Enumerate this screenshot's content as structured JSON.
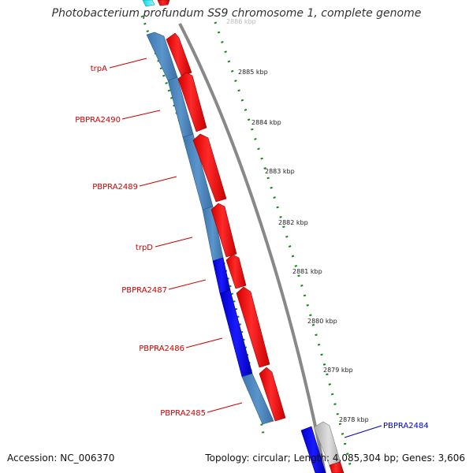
{
  "title": "Photobacterium profundum SS9 chromosome 1, complete genome",
  "footer": {
    "accession": "Accession: NC_006370",
    "summary": "Topology: circular; Length: 4,085,304 bp; Genes: 3,606"
  },
  "colors": {
    "label_red": "#cc0000",
    "label_blue": "#0000cc",
    "cds_forward": "#ff0000",
    "cds_reverse_steel": "#4f88c0",
    "cds_reverse_blue": "#0000ee",
    "backbone": "#888888",
    "scale_ticks": "#118811"
  },
  "scale_labels": [
    "2886 kbp",
    "2885 kbp",
    "2884 kbp",
    "2883 kbp",
    "2882 kbp",
    "2881 kbp",
    "2880 kbp",
    "2879 kbp",
    "2878 kbp"
  ],
  "gene_labels": [
    {
      "name": "trpA",
      "color": "red"
    },
    {
      "name": "PBPRA2490",
      "color": "red"
    },
    {
      "name": "PBPRA2489",
      "color": "red"
    },
    {
      "name": "trpD",
      "color": "red"
    },
    {
      "name": "PBPRA2487",
      "color": "red"
    },
    {
      "name": "PBPRA2486",
      "color": "red"
    },
    {
      "name": "PBPRA2485",
      "color": "red"
    },
    {
      "name": "PBPRA2484",
      "color": "blue"
    }
  ]
}
